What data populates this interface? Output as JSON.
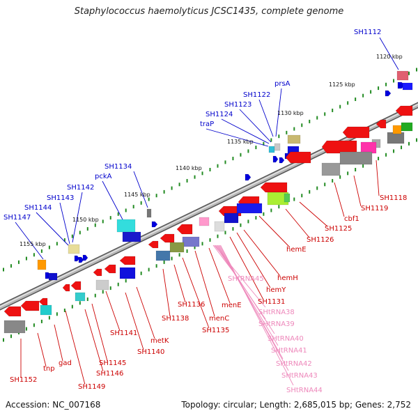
{
  "title": "Staphylococcus haemolyticus JCSC1435, complete genome",
  "footer": {
    "accession": "Accession: NC_007168",
    "summary": "Topology: circular; Length: 2,685,015 bp; Genes: 2,752"
  },
  "colors": {
    "forward_label": "#0000cc",
    "reverse_label": "#cc0000",
    "rna_label": "#ee88bb",
    "tick": "#228b22",
    "backbone": "#999999"
  },
  "kbp_ticks": [
    "1120 kbp",
    "1125 kbp",
    "1130 kbp",
    "1135 kbp",
    "1140 kbp",
    "1145 kbp",
    "1150 kbp",
    "1155 kbp"
  ],
  "forward_labels": [
    "SH1112",
    "prsA",
    "SH1122",
    "SH1123",
    "SH1124",
    "traP",
    "SH1134",
    "pckA",
    "SH1142",
    "SH1143",
    "SH1144",
    "SH1147"
  ],
  "reverse_labels": [
    "SH1118",
    "SH1119",
    "cbf1",
    "SH1125",
    "SH1126",
    "hemE",
    "hemH",
    "hemY",
    "SH1131",
    "menE",
    "menC",
    "SH1135",
    "SH1136",
    "SH1138",
    "metK",
    "SH1140",
    "SH1141",
    "SH1145",
    "SH1146",
    "SH1149",
    "gad",
    "tnp",
    "SH1152"
  ],
  "rna_labels": [
    "SHtRNA45",
    "SHtRNA38",
    "SHtRNA39",
    "SHtRNA40",
    "SHtRNA41",
    "SHtRNA42",
    "SHtRNA43",
    "SHtRNA44"
  ]
}
